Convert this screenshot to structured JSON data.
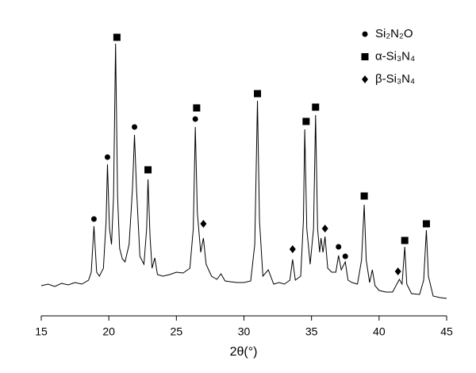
{
  "chart_data": {
    "type": "line",
    "xlabel": "2θ(°)",
    "xlim": [
      15,
      45
    ],
    "xticks": [
      15,
      20,
      25,
      30,
      35,
      40,
      45
    ],
    "ylim": [
      0,
      360
    ],
    "color": "#000000",
    "x": [
      15.0,
      15.5,
      16.0,
      16.5,
      17.0,
      17.5,
      18.0,
      18.5,
      18.7,
      18.9,
      19.1,
      19.3,
      19.6,
      19.8,
      19.9,
      20.05,
      20.2,
      20.35,
      20.5,
      20.65,
      20.8,
      21.0,
      21.2,
      21.5,
      21.75,
      21.9,
      22.05,
      22.3,
      22.6,
      22.8,
      22.9,
      23.05,
      23.2,
      23.4,
      23.6,
      24.0,
      24.5,
      25.0,
      25.5,
      26.0,
      26.25,
      26.4,
      26.55,
      26.8,
      27.0,
      27.2,
      27.6,
      28.0,
      28.3,
      28.6,
      29.0,
      29.5,
      30.0,
      30.5,
      30.8,
      31.0,
      31.15,
      31.4,
      31.8,
      32.2,
      32.6,
      33.0,
      33.4,
      33.6,
      33.8,
      34.2,
      34.4,
      34.5,
      34.65,
      34.9,
      35.15,
      35.3,
      35.45,
      35.6,
      35.7,
      35.85,
      36.0,
      36.2,
      36.5,
      36.8,
      37.0,
      37.2,
      37.5,
      37.7,
      38.0,
      38.4,
      38.7,
      38.9,
      39.05,
      39.3,
      39.5,
      39.7,
      40.0,
      40.5,
      41.0,
      41.5,
      41.7,
      41.9,
      42.05,
      42.4,
      43.0,
      43.3,
      43.5,
      43.65,
      44.0,
      44.5,
      45.0
    ],
    "values": [
      38,
      40,
      37,
      41,
      39,
      42,
      40,
      45,
      55,
      113,
      55,
      50,
      60,
      120,
      191,
      110,
      90,
      150,
      343,
      150,
      85,
      72,
      68,
      90,
      160,
      228,
      160,
      75,
      65,
      110,
      172,
      100,
      60,
      73,
      52,
      50,
      52,
      55,
      54,
      60,
      110,
      238,
      130,
      80,
      98,
      65,
      50,
      46,
      53,
      44,
      43,
      42,
      42,
      44,
      90,
      271,
      120,
      50,
      58,
      40,
      42,
      40,
      45,
      71,
      45,
      50,
      120,
      235,
      110,
      65,
      110,
      253,
      110,
      80,
      98,
      80,
      100,
      60,
      55,
      55,
      76,
      58,
      68,
      45,
      42,
      40,
      70,
      140,
      70,
      42,
      58,
      38,
      32,
      30,
      30,
      46,
      40,
      87,
      40,
      28,
      27,
      45,
      108,
      50,
      25,
      23,
      22
    ],
    "markers": [
      {
        "name": "Si₂N₂O",
        "shape": "circle",
        "x": [
          18.9,
          19.9,
          21.9,
          26.4,
          37.0,
          37.5
        ],
        "values": [
          122,
          200,
          238,
          248,
          87,
          75
        ]
      },
      {
        "name": "α-Si₃N₄",
        "shape": "square",
        "x": [
          20.6,
          22.9,
          26.5,
          31.0,
          34.6,
          35.3,
          38.9,
          41.9,
          43.5
        ],
        "values": [
          351,
          184,
          262,
          280,
          245,
          263,
          151,
          95,
          116
        ]
      },
      {
        "name": "β-Si₃N₄",
        "shape": "diamond",
        "x": [
          27.0,
          33.6,
          36.0,
          41.4
        ],
        "values": [
          116,
          84,
          110,
          56
        ]
      }
    ]
  }
}
